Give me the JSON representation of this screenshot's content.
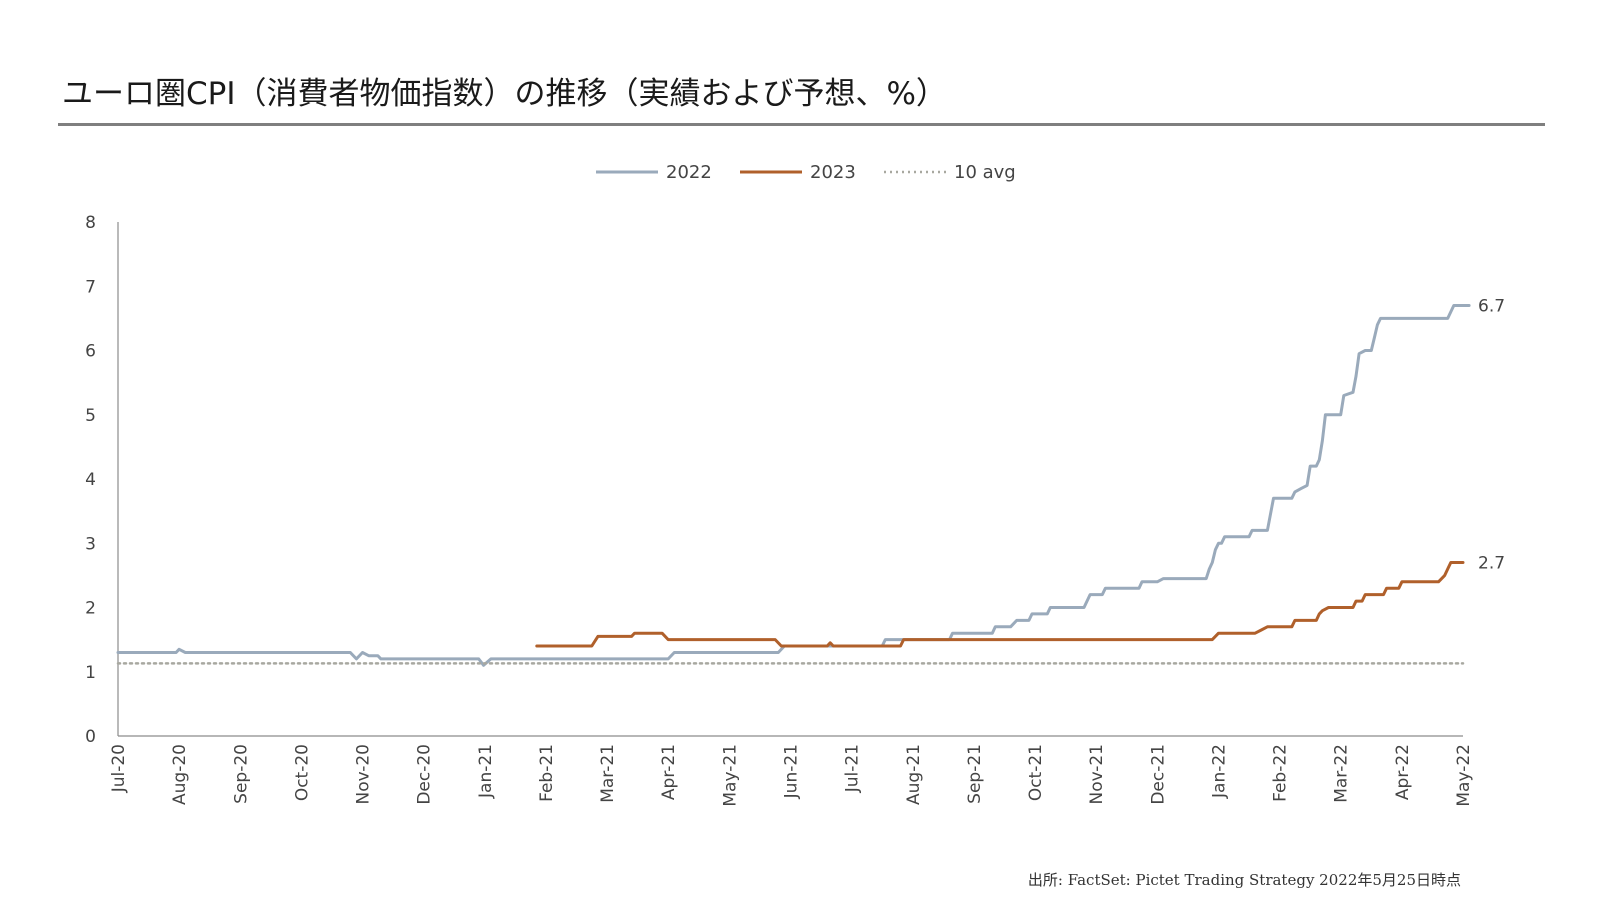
{
  "title": "ユーロ圏CPI（消費者物価指数）の推移（実績および予想、%）",
  "source": "出所: FactSet: Pictet Trading Strategy 2022年5月25日時点",
  "chart_data": {
    "type": "line",
    "title": "ユーロ圏CPI（消費者物価指数）の推移（実績および予想、%）",
    "xlabel": "",
    "ylabel": "",
    "ylim": [
      0,
      8
    ],
    "yticks": [
      "0",
      "1",
      "2",
      "3",
      "4",
      "5",
      "6",
      "7",
      "8"
    ],
    "categories": [
      "Jul-20",
      "Aug-20",
      "Sep-20",
      "Oct-20",
      "Nov-20",
      "Dec-20",
      "Jan-21",
      "Feb-21",
      "Mar-21",
      "Apr-21",
      "May-21",
      "Jun-21",
      "Jul-21",
      "Aug-21",
      "Sep-21",
      "Oct-21",
      "Nov-21",
      "Dec-21",
      "Jan-22",
      "Feb-22",
      "Mar-22",
      "Apr-22",
      "May-22"
    ],
    "legend_position": "top-center",
    "grid": false,
    "series": [
      {
        "name": "2022",
        "color": "#9aaabb",
        "style": "solid",
        "end_label": "6.7",
        "points": [
          [
            0,
            1.3
          ],
          [
            0.95,
            1.3
          ],
          [
            1.0,
            1.35
          ],
          [
            1.1,
            1.3
          ],
          [
            3.8,
            1.3
          ],
          [
            3.9,
            1.2
          ],
          [
            4.0,
            1.3
          ],
          [
            4.1,
            1.25
          ],
          [
            4.25,
            1.25
          ],
          [
            4.3,
            1.2
          ],
          [
            5.9,
            1.2
          ],
          [
            5.98,
            1.1
          ],
          [
            6.1,
            1.2
          ],
          [
            9.0,
            1.2
          ],
          [
            9.1,
            1.3
          ],
          [
            10.8,
            1.3
          ],
          [
            10.9,
            1.4
          ],
          [
            12.5,
            1.4
          ],
          [
            12.55,
            1.5
          ],
          [
            13.6,
            1.5
          ],
          [
            13.65,
            1.6
          ],
          [
            14.3,
            1.6
          ],
          [
            14.35,
            1.7
          ],
          [
            14.6,
            1.7
          ],
          [
            14.7,
            1.8
          ],
          [
            14.9,
            1.8
          ],
          [
            14.95,
            1.9
          ],
          [
            15.2,
            1.9
          ],
          [
            15.25,
            2.0
          ],
          [
            15.8,
            2.0
          ],
          [
            15.9,
            2.2
          ],
          [
            16.1,
            2.2
          ],
          [
            16.15,
            2.3
          ],
          [
            16.7,
            2.3
          ],
          [
            16.75,
            2.4
          ],
          [
            17.0,
            2.4
          ],
          [
            17.1,
            2.45
          ],
          [
            17.8,
            2.45
          ],
          [
            17.85,
            2.6
          ],
          [
            17.9,
            2.7
          ],
          [
            17.95,
            2.9
          ],
          [
            18.0,
            3.0
          ],
          [
            18.05,
            3.0
          ],
          [
            18.1,
            3.1
          ],
          [
            18.5,
            3.1
          ],
          [
            18.55,
            3.2
          ],
          [
            18.8,
            3.2
          ],
          [
            18.9,
            3.7
          ],
          [
            19.2,
            3.7
          ],
          [
            19.25,
            3.8
          ],
          [
            19.35,
            3.85
          ],
          [
            19.45,
            3.9
          ],
          [
            19.5,
            4.2
          ],
          [
            19.6,
            4.2
          ],
          [
            19.65,
            4.3
          ],
          [
            19.7,
            4.6
          ],
          [
            19.75,
            5.0
          ],
          [
            20.0,
            5.0
          ],
          [
            20.05,
            5.3
          ],
          [
            20.2,
            5.35
          ],
          [
            20.25,
            5.6
          ],
          [
            20.3,
            5.95
          ],
          [
            20.4,
            6.0
          ],
          [
            20.5,
            6.0
          ],
          [
            20.55,
            6.2
          ],
          [
            20.6,
            6.4
          ],
          [
            20.65,
            6.5
          ],
          [
            21.75,
            6.5
          ],
          [
            21.85,
            6.7
          ],
          [
            22.1,
            6.7
          ]
        ]
      },
      {
        "name": "2023",
        "color": "#b0602b",
        "style": "solid",
        "end_label": "2.7",
        "points": [
          [
            6.85,
            1.4
          ],
          [
            7.75,
            1.4
          ],
          [
            7.85,
            1.55
          ],
          [
            8.4,
            1.55
          ],
          [
            8.45,
            1.6
          ],
          [
            8.9,
            1.6
          ],
          [
            9.0,
            1.5
          ],
          [
            10.75,
            1.5
          ],
          [
            10.85,
            1.4
          ],
          [
            11.6,
            1.4
          ],
          [
            11.65,
            1.45
          ],
          [
            11.7,
            1.4
          ],
          [
            12.8,
            1.4
          ],
          [
            12.85,
            1.5
          ],
          [
            17.9,
            1.5
          ],
          [
            18.0,
            1.6
          ],
          [
            18.6,
            1.6
          ],
          [
            18.7,
            1.65
          ],
          [
            18.8,
            1.7
          ],
          [
            19.2,
            1.7
          ],
          [
            19.25,
            1.8
          ],
          [
            19.6,
            1.8
          ],
          [
            19.65,
            1.9
          ],
          [
            19.7,
            1.95
          ],
          [
            19.8,
            2.0
          ],
          [
            20.2,
            2.0
          ],
          [
            20.25,
            2.1
          ],
          [
            20.35,
            2.1
          ],
          [
            20.4,
            2.2
          ],
          [
            20.7,
            2.2
          ],
          [
            20.75,
            2.3
          ],
          [
            20.95,
            2.3
          ],
          [
            21.0,
            2.4
          ],
          [
            21.6,
            2.4
          ],
          [
            21.7,
            2.5
          ],
          [
            21.75,
            2.6
          ],
          [
            21.8,
            2.7
          ],
          [
            22.0,
            2.7
          ]
        ]
      },
      {
        "name": "10 avg",
        "color": "#a8a8a0",
        "style": "dotted",
        "points": [
          [
            0,
            1.13
          ],
          [
            22.0,
            1.13
          ]
        ]
      }
    ]
  }
}
